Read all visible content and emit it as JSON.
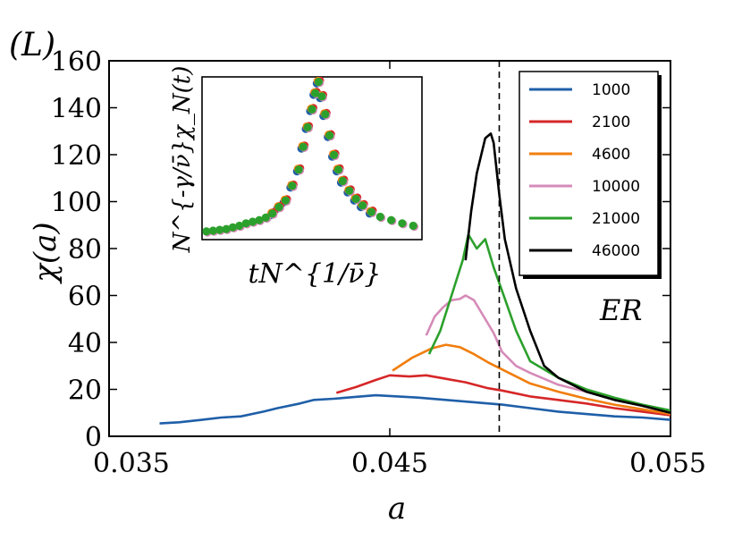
{
  "chart_data": {
    "type": "line",
    "panel_label": "(L)",
    "xlabel": "a",
    "ylabel": "χ(a)",
    "xlim": [
      0.035,
      0.055
    ],
    "ylim": [
      0,
      160
    ],
    "xticks": [
      {
        "value": 0.035,
        "label": "0.035"
      },
      {
        "value": 0.045,
        "label": "0.045"
      },
      {
        "value": 0.055,
        "label": "0.055"
      }
    ],
    "yticks": [
      {
        "value": 0,
        "label": "0"
      },
      {
        "value": 20,
        "label": "20"
      },
      {
        "value": 40,
        "label": "40"
      },
      {
        "value": 60,
        "label": "60"
      },
      {
        "value": 80,
        "label": "80"
      },
      {
        "value": 100,
        "label": "100"
      },
      {
        "value": 120,
        "label": "120"
      },
      {
        "value": 140,
        "label": "140"
      },
      {
        "value": 160,
        "label": "160"
      }
    ],
    "threshold": {
      "x": 0.0489,
      "label": "ER",
      "style": "dashed"
    },
    "legend_position": "top-right",
    "series": [
      {
        "name": "1000",
        "color": "#1f5fa8",
        "x": [
          0.0368,
          0.0375,
          0.0383,
          0.039,
          0.0397,
          0.0405,
          0.041,
          0.0418,
          0.0423,
          0.043,
          0.0445,
          0.046,
          0.047,
          0.048,
          0.049,
          0.05,
          0.051,
          0.052,
          0.053,
          0.054,
          0.055
        ],
        "y": [
          5.5,
          6,
          7,
          8,
          8.5,
          10.5,
          12,
          14,
          15.5,
          16,
          17.5,
          16.5,
          15.5,
          14.5,
          13.5,
          12,
          10.5,
          9.5,
          8.5,
          8,
          7
        ]
      },
      {
        "name": "2100",
        "color": "#d62728",
        "x": [
          0.0431,
          0.0438,
          0.0445,
          0.045,
          0.0457,
          0.0463,
          0.047,
          0.0477,
          0.0485,
          0.049,
          0.05,
          0.051,
          0.052,
          0.053,
          0.054,
          0.055
        ],
        "y": [
          18.5,
          21,
          24,
          26,
          25.5,
          26,
          24.5,
          23,
          20.5,
          19.5,
          17,
          15.5,
          14,
          12,
          10.5,
          9
        ]
      },
      {
        "name": "4600",
        "color": "#f07e0e",
        "x": [
          0.0451,
          0.0458,
          0.0465,
          0.047,
          0.0475,
          0.048,
          0.0485,
          0.049,
          0.05,
          0.051,
          0.052,
          0.053,
          0.054,
          0.055
        ],
        "y": [
          28,
          33.5,
          37.5,
          39,
          38,
          35,
          31.5,
          28.5,
          22.5,
          19,
          16,
          13.5,
          11.5,
          9.5
        ]
      },
      {
        "name": "10000",
        "color": "#d58bb8",
        "x": [
          0.0463,
          0.0466,
          0.0469,
          0.0472,
          0.0475,
          0.0477,
          0.048,
          0.0483,
          0.0487,
          0.049,
          0.0495,
          0.05,
          0.051,
          0.052,
          0.053,
          0.054,
          0.055
        ],
        "y": [
          43,
          51,
          55,
          58,
          58.5,
          60,
          58,
          52,
          44,
          36,
          30,
          27,
          22,
          19,
          16,
          13,
          10
        ]
      },
      {
        "name": "21000",
        "color": "#2ca02c",
        "x": [
          0.0464,
          0.0468,
          0.0472,
          0.0476,
          0.0478,
          0.0481,
          0.0484,
          0.0487,
          0.049,
          0.0495,
          0.05,
          0.051,
          0.052,
          0.053,
          0.054,
          0.055
        ],
        "y": [
          35,
          45,
          60,
          75,
          86,
          80,
          84,
          72,
          62,
          45,
          32,
          25,
          20,
          16.5,
          13.5,
          11
        ]
      },
      {
        "name": "46000",
        "color": "#000000",
        "x": [
          0.0477,
          0.0479,
          0.0481,
          0.0484,
          0.0486,
          0.0487,
          0.0489,
          0.0491,
          0.0495,
          0.05,
          0.0505,
          0.051,
          0.052,
          0.053,
          0.054,
          0.055
        ],
        "y": [
          75,
          96,
          112,
          127,
          129,
          125,
          103,
          84,
          63,
          45,
          30,
          25,
          19,
          15.5,
          13,
          10
        ]
      }
    ],
    "inset": {
      "xlabel": "tN^{1/ν̄}",
      "ylabel": "N^{-γ/ν̄}χ_N(t)",
      "type": "scatter",
      "peak_x": 0.53,
      "points": [
        {
          "x": 0.02,
          "y": 0.05
        },
        {
          "x": 0.05,
          "y": 0.055
        },
        {
          "x": 0.08,
          "y": 0.06
        },
        {
          "x": 0.11,
          "y": 0.065
        },
        {
          "x": 0.14,
          "y": 0.075
        },
        {
          "x": 0.17,
          "y": 0.085
        },
        {
          "x": 0.2,
          "y": 0.1
        },
        {
          "x": 0.23,
          "y": 0.11
        },
        {
          "x": 0.26,
          "y": 0.12
        },
        {
          "x": 0.29,
          "y": 0.135
        },
        {
          "x": 0.32,
          "y": 0.16
        },
        {
          "x": 0.35,
          "y": 0.2
        },
        {
          "x": 0.38,
          "y": 0.24
        },
        {
          "x": 0.41,
          "y": 0.33
        },
        {
          "x": 0.44,
          "y": 0.43
        },
        {
          "x": 0.46,
          "y": 0.57
        },
        {
          "x": 0.48,
          "y": 0.69
        },
        {
          "x": 0.5,
          "y": 0.8
        },
        {
          "x": 0.515,
          "y": 0.9
        },
        {
          "x": 0.53,
          "y": 0.97
        },
        {
          "x": 0.545,
          "y": 0.88
        },
        {
          "x": 0.56,
          "y": 0.77
        },
        {
          "x": 0.58,
          "y": 0.64
        },
        {
          "x": 0.6,
          "y": 0.52
        },
        {
          "x": 0.62,
          "y": 0.43
        },
        {
          "x": 0.64,
          "y": 0.36
        },
        {
          "x": 0.67,
          "y": 0.3
        },
        {
          "x": 0.7,
          "y": 0.25
        },
        {
          "x": 0.73,
          "y": 0.21
        },
        {
          "x": 0.77,
          "y": 0.17
        },
        {
          "x": 0.81,
          "y": 0.14
        },
        {
          "x": 0.86,
          "y": 0.12
        },
        {
          "x": 0.91,
          "y": 0.1
        },
        {
          "x": 0.96,
          "y": 0.085
        }
      ]
    }
  }
}
